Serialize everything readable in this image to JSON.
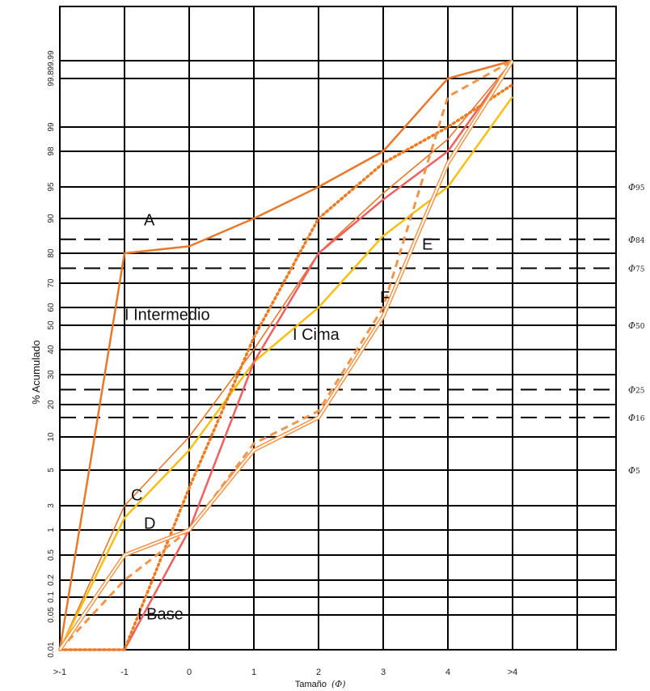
{
  "chart_data": {
    "type": "line",
    "title": "",
    "xlabel": "Tamaño",
    "xlabel_symbol": "(Φ)",
    "ylabel": "% Acumulado",
    "y_scale": "probability",
    "grid": "on",
    "categories": [
      ">-1",
      "-1",
      "0",
      "1",
      "2",
      "3",
      "4",
      ">4"
    ],
    "y_ticks": [
      "0.01",
      "0.05",
      "0.1",
      "0.2",
      "0.5",
      "1",
      "3",
      "5",
      "10",
      "20",
      "30",
      "40",
      "50",
      "60",
      "70",
      "80",
      "90",
      "95",
      "98",
      "99",
      "99.8",
      "99.99"
    ],
    "percentile_lines": [
      {
        "label": "Φ95",
        "base": "Φ",
        "sub": "95",
        "value": 95
      },
      {
        "label": "Φ84",
        "base": "Φ",
        "sub": "84",
        "value": 84
      },
      {
        "label": "Φ75",
        "base": "Φ",
        "sub": "75",
        "value": 75
      },
      {
        "label": "Φ50",
        "base": "Φ",
        "sub": "50",
        "value": 50
      },
      {
        "label": "Φ25",
        "base": "Φ",
        "sub": "25",
        "value": 25
      },
      {
        "label": "Φ16",
        "base": "Φ",
        "sub": "16",
        "value": 16
      },
      {
        "label": "Φ5",
        "base": "Φ",
        "sub": "5",
        "value": 5
      }
    ],
    "series": [
      {
        "color": "#e8782a",
        "style": "solid",
        "values": [
          0.01,
          80,
          82,
          90,
          95,
          98,
          99.8,
          99.99
        ]
      },
      {
        "color": "#e8782a",
        "style": "solid-thin",
        "values": [
          0.01,
          3,
          10,
          40,
          80,
          94,
          98.5,
          99.99
        ]
      },
      {
        "color": "#f5c014",
        "style": "solid",
        "values": [
          0.01,
          2,
          8,
          35,
          60,
          85,
          95,
          99.5
        ]
      },
      {
        "color": "#f06060",
        "style": "solid",
        "values": [
          0.01,
          0.01,
          1,
          35,
          80,
          93,
          98,
          99.99
        ]
      },
      {
        "color": "#f07a20",
        "style": "dotted",
        "values": [
          0.01,
          0.01,
          4,
          45,
          90,
          97,
          99,
          99.7
        ]
      },
      {
        "color": "#f2954a",
        "style": "dashed",
        "values": [
          0.01,
          0.2,
          1,
          9,
          18,
          60,
          99.5,
          99.99
        ]
      },
      {
        "color": "#f2954a",
        "style": "double",
        "values": [
          0.01,
          0.5,
          1,
          8,
          16,
          55,
          97,
          99.99
        ]
      }
    ],
    "annotations": [
      {
        "text": "A",
        "x": -0.7,
        "y": 88
      },
      {
        "text": "C",
        "x": -0.9,
        "y": 3.3
      },
      {
        "text": "D",
        "x": -0.7,
        "y": 1.1
      },
      {
        "text": "E",
        "x": 3.6,
        "y": 81
      },
      {
        "text": "F",
        "x": 2.95,
        "y": 62
      },
      {
        "text": "I Intermedio",
        "x": -1.0,
        "y": 53
      },
      {
        "text": "I Cima",
        "x": 1.6,
        "y": 44
      },
      {
        "text": "I Base",
        "x": -0.8,
        "y": 0.045
      }
    ]
  }
}
